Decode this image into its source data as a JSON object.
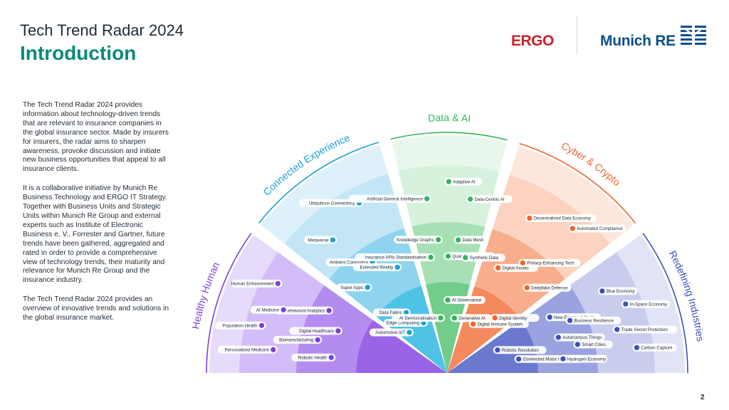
{
  "header": {
    "title": "Tech Trend Radar 2024",
    "subtitle": "Introduction"
  },
  "intro": {
    "paragraphs": [
      "The Tech Trend Radar 2024 provides information about technology-driven trends that are relevant to insurance companies in the global insurance sector. Made by insurers for insurers, the radar aims to sharpen awareness, provoke discussion and initiate new business opportunities that appeal to all insurance clients.",
      "It is a collaborative initiative by Munich Re Business Technology and ERGO IT Strategy. Together with Business Units and Strategic Units within Munich Re Group and external experts such as Institute of Electronic Business e. V., Forrester and Gartner, future trends have been gathered, aggregated and rated in order to provide a comprehensive view of technology trends, their maturity and relevance for Munich Re Group and the insurance industry.",
      "The Tech Trend Radar 2024 provides an overview of innovative trends and solutions in the global insurance market."
    ]
  },
  "logos": {
    "ergo": "ERGO",
    "munich_re": "Munich RE",
    "munich_re_icon": "munich-re-mark-icon"
  },
  "page_number": "2",
  "colors": {
    "teal_title": "#0a8a7a",
    "ergo_red": "#cc1f2b",
    "munich_blue": "#0d4f8b"
  },
  "radar": {
    "segments": [
      {
        "id": "healthy-human",
        "label": "Healthy Human",
        "color": "#7b3fd8",
        "band_colors": [
          "#9a64e6",
          "#b48cf0",
          "#d3bdf8"
        ],
        "trends": [
          {
            "label": "Robotic Health",
            "ring": 2
          },
          {
            "label": "Personalized Medicine",
            "ring": 3
          },
          {
            "label": "Biomanufacturing",
            "ring": 2
          },
          {
            "label": "Population Health",
            "ring": 3
          },
          {
            "label": "AI Medicine",
            "ring": 3
          },
          {
            "label": "Digital Healthcare",
            "ring": 2
          },
          {
            "label": "Human Enhancement",
            "ring": 3
          },
          {
            "label": "Behavioral Analytics",
            "ring": 2
          }
        ]
      },
      {
        "id": "connected-experience",
        "label": "Connected Experience",
        "color": "#1aa0d8",
        "band_colors": [
          "#4fc3e6",
          "#8fd4ee",
          "#c2e6f5"
        ],
        "trends": [
          {
            "label": "Metaverse",
            "ring": 3
          },
          {
            "label": "Ubiquitous Connectivity",
            "ring": 3
          },
          {
            "label": "Super Apps",
            "ring": 2
          },
          {
            "label": "Ambient Computing",
            "ring": 2
          },
          {
            "label": "Extended Reality",
            "ring": 2
          },
          {
            "label": "Automotive IoT",
            "ring": 1
          },
          {
            "label": "Data Fabric",
            "ring": 1
          },
          {
            "label": "Edge Computing",
            "ring": 1
          }
        ]
      },
      {
        "id": "data-ai",
        "label": "Data & AI",
        "color": "#35b35a",
        "band_colors": [
          "#72cc8a",
          "#a8e0b6",
          "#d6f1dc"
        ],
        "trends": [
          {
            "label": "Artificial General Intelligence",
            "ring": 3
          },
          {
            "label": "Adaptive AI",
            "ring": 3
          },
          {
            "label": "Data-Centric AI",
            "ring": 3
          },
          {
            "label": "Insurance APIs Standardisation",
            "ring": 2
          },
          {
            "label": "Knowledge Graphs",
            "ring": 2
          },
          {
            "label": "Quantum Computing",
            "ring": 2
          },
          {
            "label": "Data Mesh",
            "ring": 2
          },
          {
            "label": "Synthetic Data",
            "ring": 2
          },
          {
            "label": "AI Democratisation",
            "ring": 1
          },
          {
            "label": "AI Governance",
            "ring": 1
          },
          {
            "label": "Generative AI",
            "ring": 1
          }
        ]
      },
      {
        "id": "cyber-crypto",
        "label": "Cyber & Crypto",
        "color": "#f2622b",
        "band_colors": [
          "#f58a5e",
          "#f8ae8c",
          "#fbd3c0"
        ],
        "trends": [
          {
            "label": "Decentralized Data Economy",
            "ring": 3
          },
          {
            "label": "Automated Compliance",
            "ring": 3
          },
          {
            "label": "Digital Assets",
            "ring": 2
          },
          {
            "label": "Privacy-Enhancing Tech",
            "ring": 2
          },
          {
            "label": "Deepfake Defense",
            "ring": 2
          },
          {
            "label": "Digital Immune System",
            "ring": 1
          },
          {
            "label": "Digital Identity",
            "ring": 1
          }
        ]
      },
      {
        "id": "redefining-industries",
        "label": "Redefining Industries",
        "color": "#3b4fb8",
        "band_colors": [
          "#6a78cf",
          "#9aa3df",
          "#c8cdee"
        ],
        "trends": [
          {
            "label": "Blue Economy",
            "ring": 3
          },
          {
            "label": "New Energy at Scale",
            "ring": 2
          },
          {
            "label": "Business Resilience",
            "ring": 2
          },
          {
            "label": "In-Space Economy",
            "ring": 3
          },
          {
            "label": "Autonomous Things",
            "ring": 2
          },
          {
            "label": "Trade Secret Protection",
            "ring": 3
          },
          {
            "label": "Smart Cities",
            "ring": 2
          },
          {
            "label": "Robotic Revolution",
            "ring": 1
          },
          {
            "label": "Carbon Capture",
            "ring": 3
          },
          {
            "label": "Connected Motor Insurance",
            "ring": 1
          },
          {
            "label": "Hydrogen Economy",
            "ring": 2
          }
        ]
      }
    ]
  }
}
